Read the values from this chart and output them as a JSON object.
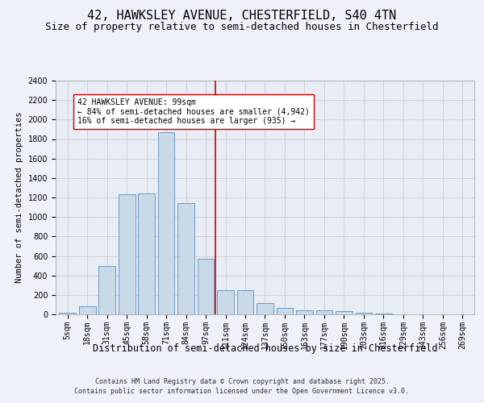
{
  "title1": "42, HAWKSLEY AVENUE, CHESTERFIELD, S40 4TN",
  "title2": "Size of property relative to semi-detached houses in Chesterfield",
  "xlabel": "Distribution of semi-detached houses by size in Chesterfield",
  "ylabel": "Number of semi-detached properties",
  "footnote1": "Contains HM Land Registry data © Crown copyright and database right 2025.",
  "footnote2": "Contains public sector information licensed under the Open Government Licence v3.0.",
  "annotation_line1": "42 HAWKSLEY AVENUE: 99sqm",
  "annotation_line2": "← 84% of semi-detached houses are smaller (4,942)",
  "annotation_line3": "16% of semi-detached houses are larger (935) →",
  "bar_labels": [
    "5sqm",
    "18sqm",
    "31sqm",
    "45sqm",
    "58sqm",
    "71sqm",
    "84sqm",
    "97sqm",
    "111sqm",
    "124sqm",
    "137sqm",
    "150sqm",
    "163sqm",
    "177sqm",
    "190sqm",
    "203sqm",
    "216sqm",
    "229sqm",
    "243sqm",
    "256sqm",
    "269sqm"
  ],
  "bar_values": [
    15,
    80,
    500,
    1230,
    1240,
    1870,
    1140,
    575,
    245,
    245,
    120,
    65,
    40,
    40,
    30,
    15,
    5,
    0,
    0,
    0,
    0
  ],
  "bar_color": "#c9d9e8",
  "bar_edge_color": "#5a8fc0",
  "vline_x_index": 7,
  "vline_color": "#cc0000",
  "ylim": [
    0,
    2400
  ],
  "yticks": [
    0,
    200,
    400,
    600,
    800,
    1000,
    1200,
    1400,
    1600,
    1800,
    2000,
    2200,
    2400
  ],
  "grid_color": "#cccccc",
  "bg_color": "#eef2f8",
  "plot_bg_color": "#e8ecf5",
  "annotation_box_color": "#ffffff",
  "annotation_box_edge": "#cc0000",
  "title1_fontsize": 11,
  "title2_fontsize": 9,
  "xlabel_fontsize": 8.5,
  "ylabel_fontsize": 7.5,
  "tick_fontsize": 7,
  "annotation_fontsize": 7,
  "footnote_fontsize": 6
}
